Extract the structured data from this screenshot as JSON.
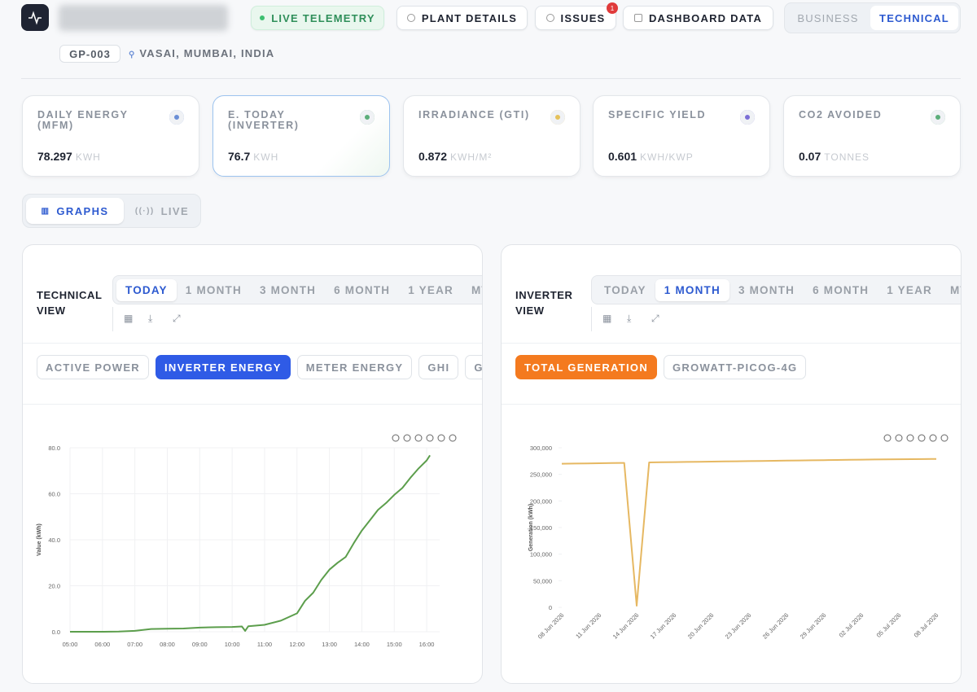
{
  "header": {
    "live": "LIVE TELEMETRY",
    "buttons": [
      "PLANT DETAILS",
      "ISSUES",
      "DASHBOARD DATA"
    ],
    "issues_badge": 1,
    "view_toggle": [
      "BUSINESS",
      "TECHNICAL"
    ],
    "active_view": 1,
    "plant_id": "GP-003",
    "location": "VASAI, MUMBAI, INDIA"
  },
  "kpis": [
    {
      "label": "DAILY ENERGY (MFM)",
      "value": 78.297,
      "unit": "KWH"
    },
    {
      "label": "E. TODAY (INVERTER)",
      "value": 76.7,
      "unit": "KWH"
    },
    {
      "label": "IRRADIANCE (GTI)",
      "value": 0.872,
      "unit": "KWH/M²"
    },
    {
      "label": "SPECIFIC YIELD",
      "value": 0.601,
      "unit": "KWH/KWP"
    },
    {
      "label": "CO2 AVOIDED",
      "value": 0.07,
      "unit": "TONNES"
    }
  ],
  "view_tabs": [
    "GRAPHS",
    "LIVE"
  ],
  "active_tab": 0,
  "panels": [
    {
      "title": "TECHNICAL VIEW",
      "ranges": [
        "TODAY",
        "1 MONTH",
        "3 MONTH",
        "6 MONTH",
        "1 YEAR",
        "MTD"
      ],
      "active_range": 0,
      "metrics": [
        "ACTIVE POWER",
        "INVERTER ENERGY",
        "METER ENERGY",
        "GHI",
        "GTI"
      ],
      "active_metric": 1,
      "active_color": "#2f5be6",
      "chart": {
        "type": "line",
        "y_label": "Value (kWh)",
        "color": "#5c9e4c",
        "grid": true,
        "x": [
          5,
          5.5,
          6,
          6.5,
          7,
          7.5,
          8,
          8.5,
          9,
          9.5,
          10,
          10.3,
          10.4,
          10.5,
          11,
          11.5,
          12,
          12.25,
          12.5,
          12.75,
          13,
          13.25,
          13.5,
          13.75,
          14,
          14.25,
          14.5,
          14.75,
          15,
          15.25,
          15.5,
          15.75,
          16,
          16.1
        ],
        "values": [
          0,
          0,
          0,
          0.1,
          0.4,
          1.2,
          1.3,
          1.4,
          1.8,
          2.0,
          2.1,
          2.3,
          0.4,
          2.4,
          3.0,
          4.8,
          8.0,
          13.5,
          17.0,
          22.5,
          27.0,
          30.0,
          32.5,
          38.5,
          44.0,
          48.5,
          53.0,
          56.0,
          59.5,
          62.5,
          67.0,
          71.0,
          74.5,
          76.7
        ],
        "xlim": [
          5,
          16.4
        ],
        "xticks": [
          {
            "value": 5,
            "label": "05:00"
          },
          {
            "value": 6,
            "label": "06:00"
          },
          {
            "value": 7,
            "label": "07:00"
          },
          {
            "value": 8,
            "label": "08:00"
          },
          {
            "value": 9,
            "label": "09:00"
          },
          {
            "value": 10,
            "label": "10:00"
          },
          {
            "value": 11,
            "label": "11:00"
          },
          {
            "value": 12,
            "label": "12:00"
          },
          {
            "value": 13,
            "label": "13:00"
          },
          {
            "value": 14,
            "label": "14:00"
          },
          {
            "value": 15,
            "label": "15:00"
          },
          {
            "value": 16,
            "label": "16:00"
          }
        ],
        "ylim": [
          0,
          80
        ],
        "yticks": [
          {
            "value": 0,
            "label": "0.0"
          },
          {
            "value": 20,
            "label": "20.0"
          },
          {
            "value": 40,
            "label": "40.0"
          },
          {
            "value": 60,
            "label": "60.0"
          },
          {
            "value": 80,
            "label": "80.0"
          }
        ]
      }
    },
    {
      "title": "INVERTER VIEW",
      "ranges": [
        "TODAY",
        "1 MONTH",
        "3 MONTH",
        "6 MONTH",
        "1 YEAR",
        "MTD"
      ],
      "active_range": 1,
      "metrics": [
        "TOTAL GENERATION",
        "GROWATT-PICOG-4G"
      ],
      "active_metric": 0,
      "active_color": "#f47a1f",
      "chart": {
        "type": "line",
        "y_label": "Generation (kWh)",
        "color": "#e6b862",
        "grid": false,
        "categories": [
          "08 Jun 2026",
          null,
          null,
          "11 Jun 2026",
          null,
          null,
          "14 Jun 2026",
          null,
          null,
          "17 Jun 2026",
          null,
          null,
          "20 Jun 2026",
          null,
          null,
          "23 Jun 2026",
          null,
          null,
          "26 Jun 2026",
          null,
          null,
          "29 Jun 2026",
          null,
          null,
          "02 Jul 2026",
          null,
          null,
          "05 Jul 2026",
          null,
          null,
          "08 Jul 2026"
        ],
        "values": [
          270000,
          270300,
          270600,
          270900,
          271200,
          271500,
          3000,
          272500,
          272800,
          273100,
          273400,
          273700,
          274000,
          274300,
          274600,
          274900,
          275200,
          275500,
          275800,
          276100,
          276400,
          276700,
          277000,
          277300,
          277600,
          277900,
          278200,
          278400,
          278600,
          278800,
          279000
        ],
        "ylim": [
          0,
          300000
        ],
        "yticks": [
          0,
          {
            "value": 50000,
            "label": "50,000"
          },
          {
            "value": 100000,
            "label": "100,000"
          },
          {
            "value": 150000,
            "label": "150,000"
          },
          {
            "value": 200000,
            "label": "200,000"
          },
          {
            "value": 250000,
            "label": "250,000"
          },
          {
            "value": 300000,
            "label": "300,000"
          }
        ]
      }
    }
  ]
}
